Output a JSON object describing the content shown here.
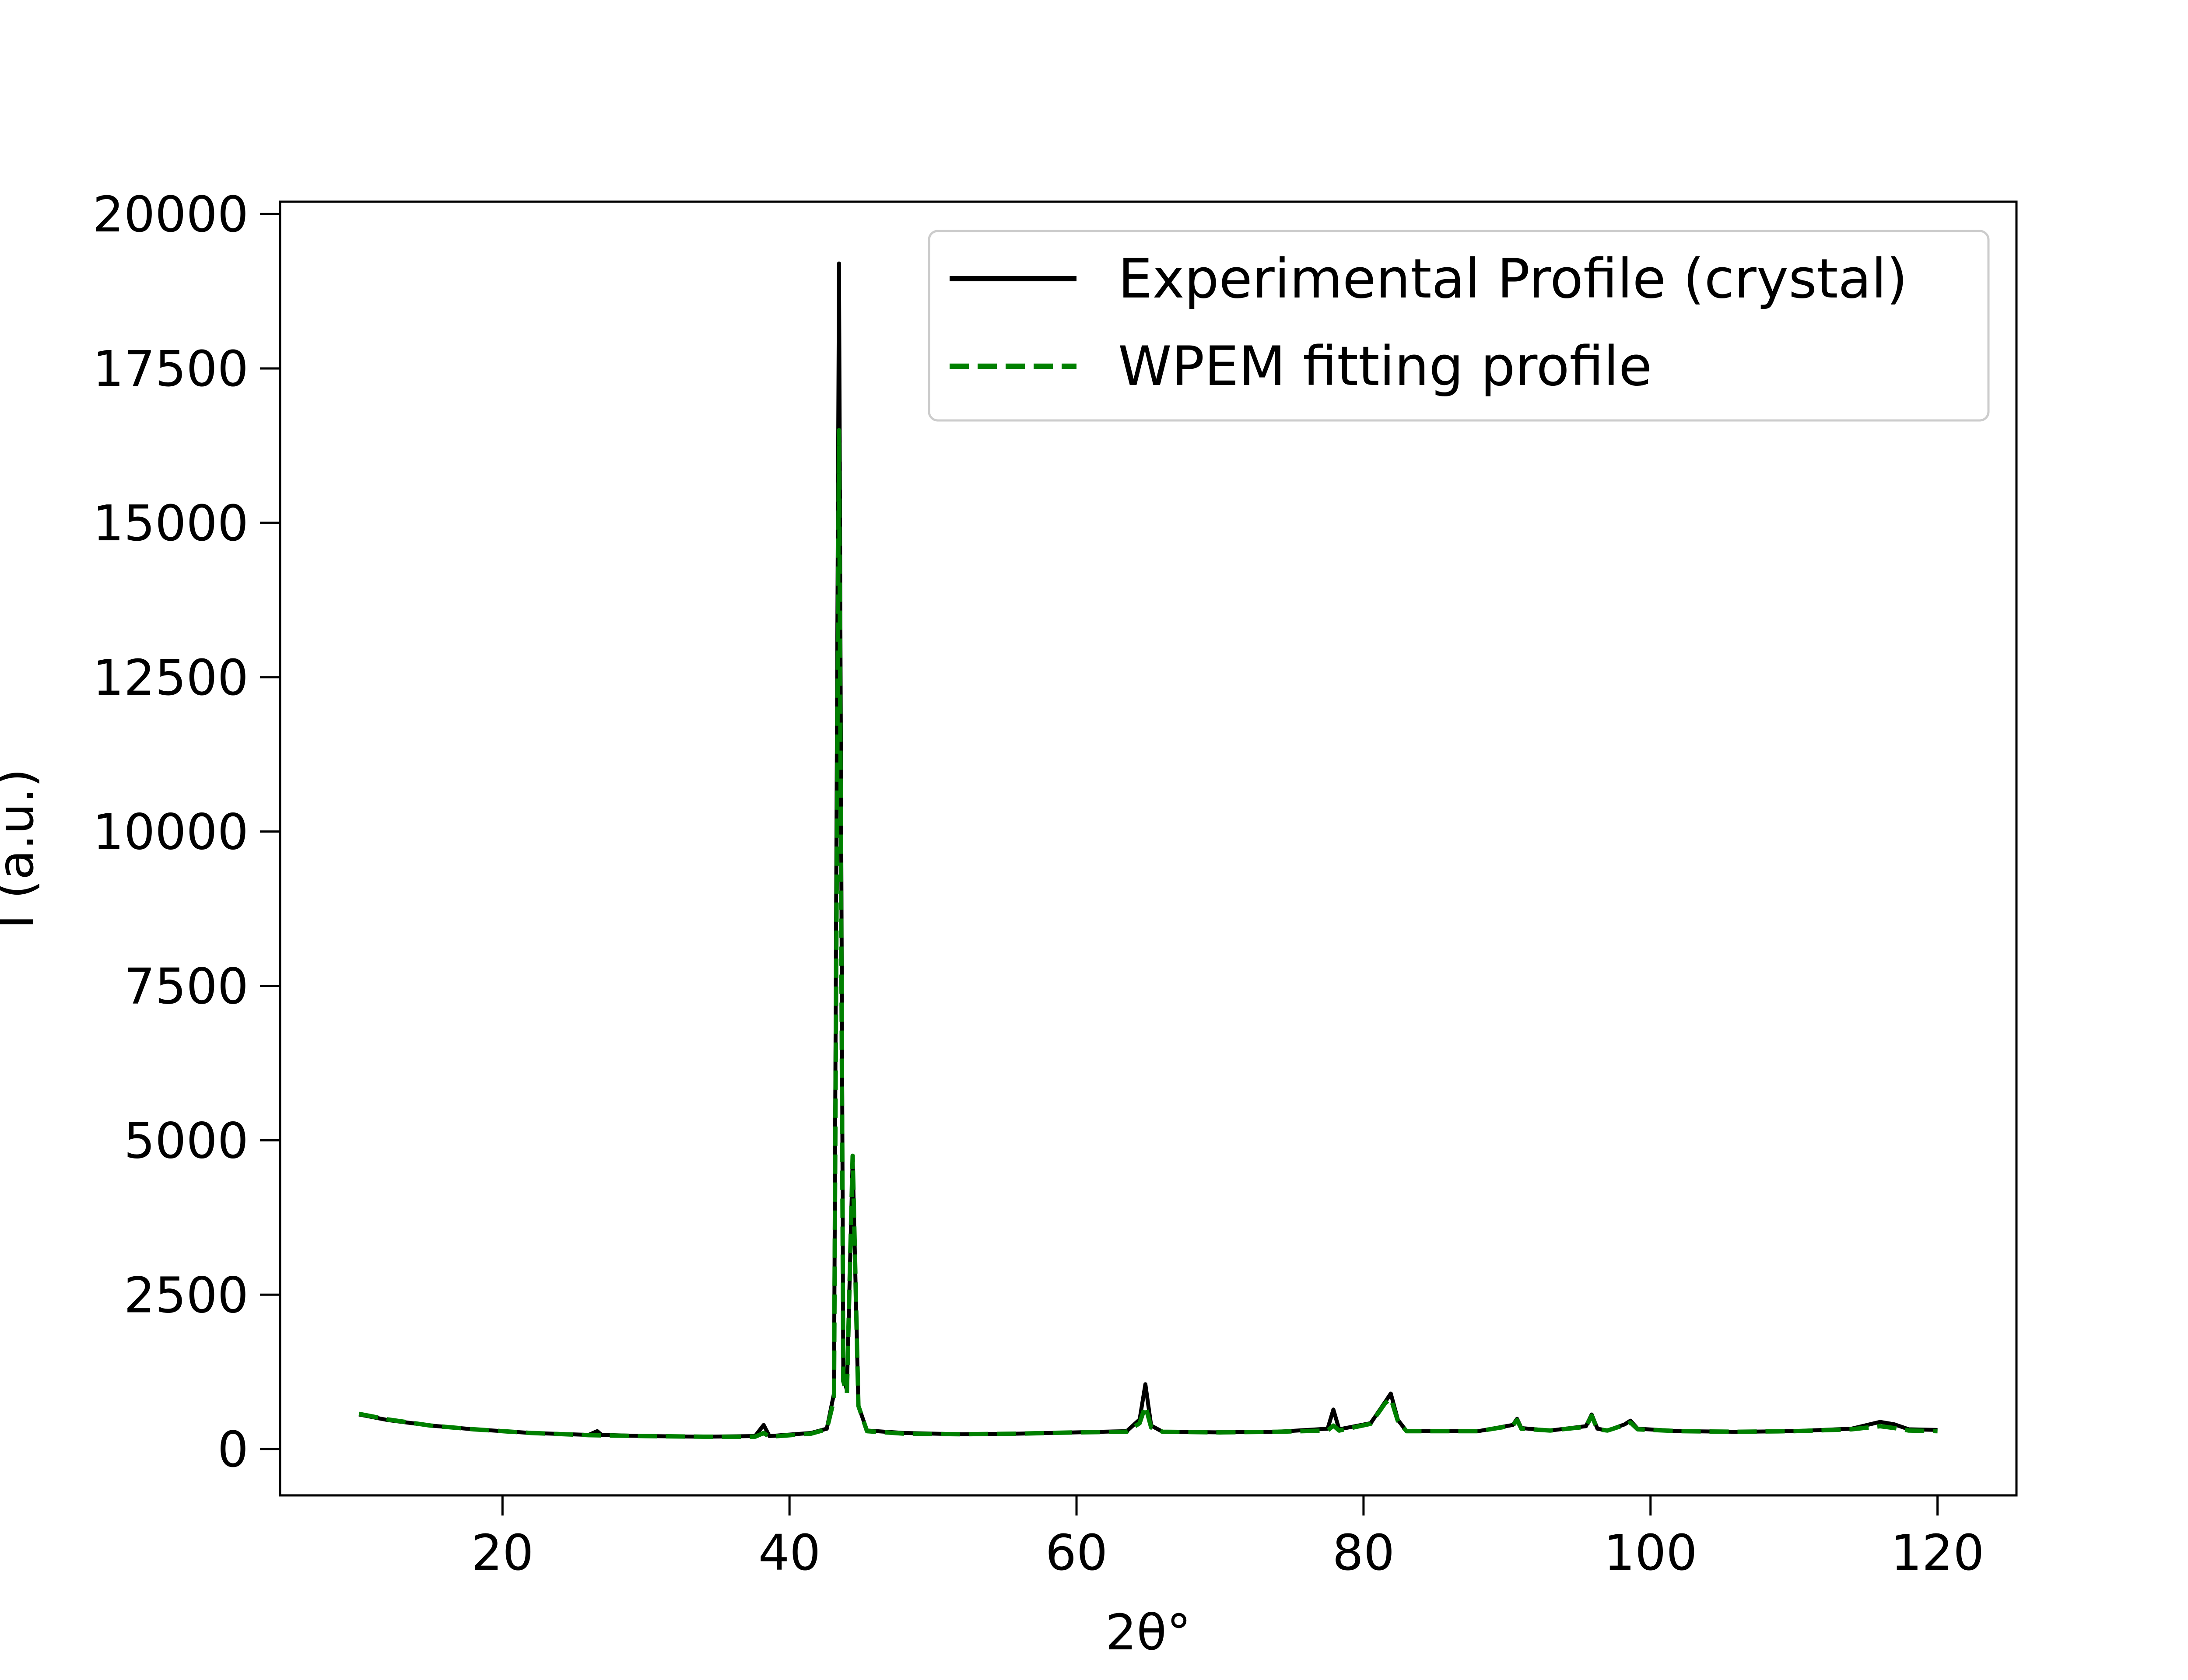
{
  "chart_data": {
    "type": "line",
    "title": "",
    "xlabel": "2θ°",
    "ylabel": "I (a.u.)",
    "xlim": [
      4.5,
      125.5
    ],
    "ylim": [
      -750,
      20200
    ],
    "xticks": [
      20,
      40,
      60,
      80,
      100,
      120
    ],
    "yticks": [
      0,
      2500,
      5000,
      7500,
      10000,
      12500,
      15000,
      17500,
      20000
    ],
    "grid": false,
    "legend_position": "top-right",
    "series": [
      {
        "name": "Experimental Profile (crystal)",
        "color": "#000000",
        "style": "solid",
        "points": [
          [
            10,
            560
          ],
          [
            12,
            470
          ],
          [
            15,
            380
          ],
          [
            18,
            320
          ],
          [
            22,
            260
          ],
          [
            26,
            230
          ],
          [
            26.6,
            290
          ],
          [
            26.9,
            230
          ],
          [
            30,
            210
          ],
          [
            34,
            200
          ],
          [
            37.6,
            210
          ],
          [
            38.2,
            390
          ],
          [
            38.6,
            210
          ],
          [
            41.5,
            260
          ],
          [
            42.6,
            330
          ],
          [
            43.1,
            900
          ],
          [
            43.45,
            19200
          ],
          [
            43.75,
            1200
          ],
          [
            44.0,
            950
          ],
          [
            44.4,
            4700
          ],
          [
            44.8,
            700
          ],
          [
            45.4,
            300
          ],
          [
            48,
            260
          ],
          [
            52,
            240
          ],
          [
            56,
            250
          ],
          [
            60,
            270
          ],
          [
            63.5,
            290
          ],
          [
            64.4,
            480
          ],
          [
            64.8,
            1050
          ],
          [
            65.2,
            380
          ],
          [
            66,
            280
          ],
          [
            70,
            270
          ],
          [
            74,
            280
          ],
          [
            77.5,
            330
          ],
          [
            77.9,
            640
          ],
          [
            78.3,
            320
          ],
          [
            80.5,
            420
          ],
          [
            81.5,
            760
          ],
          [
            81.9,
            900
          ],
          [
            82.4,
            470
          ],
          [
            83,
            290
          ],
          [
            88,
            290
          ],
          [
            90.4,
            390
          ],
          [
            90.7,
            490
          ],
          [
            91.0,
            340
          ],
          [
            93,
            300
          ],
          [
            95.5,
            370
          ],
          [
            95.9,
            560
          ],
          [
            96.3,
            330
          ],
          [
            97,
            300
          ],
          [
            98.2,
            400
          ],
          [
            98.6,
            460
          ],
          [
            99.1,
            330
          ],
          [
            102,
            290
          ],
          [
            106,
            280
          ],
          [
            110,
            290
          ],
          [
            114,
            330
          ],
          [
            116,
            440
          ],
          [
            117,
            400
          ],
          [
            118,
            320
          ],
          [
            120,
            310
          ]
        ]
      },
      {
        "name": "WPEM fitting profile",
        "color": "#008000",
        "style": "dashed",
        "points": [
          [
            10,
            570
          ],
          [
            12,
            480
          ],
          [
            15,
            380
          ],
          [
            18,
            320
          ],
          [
            22,
            260
          ],
          [
            26,
            225
          ],
          [
            30,
            210
          ],
          [
            34,
            200
          ],
          [
            37.6,
            200
          ],
          [
            38.2,
            260
          ],
          [
            38.6,
            200
          ],
          [
            41.5,
            250
          ],
          [
            42.6,
            320
          ],
          [
            43.1,
            800
          ],
          [
            43.45,
            16500
          ],
          [
            43.75,
            1100
          ],
          [
            44.0,
            900
          ],
          [
            44.4,
            4750
          ],
          [
            44.8,
            700
          ],
          [
            45.4,
            290
          ],
          [
            48,
            250
          ],
          [
            52,
            240
          ],
          [
            56,
            250
          ],
          [
            60,
            270
          ],
          [
            63.5,
            280
          ],
          [
            64.4,
            420
          ],
          [
            64.8,
            700
          ],
          [
            65.2,
            350
          ],
          [
            66,
            280
          ],
          [
            70,
            270
          ],
          [
            74,
            280
          ],
          [
            77.5,
            300
          ],
          [
            77.9,
            380
          ],
          [
            78.3,
            300
          ],
          [
            80.5,
            410
          ],
          [
            81.5,
            740
          ],
          [
            81.9,
            820
          ],
          [
            82.4,
            450
          ],
          [
            83,
            290
          ],
          [
            88,
            290
          ],
          [
            90.4,
            380
          ],
          [
            90.7,
            470
          ],
          [
            91.0,
            330
          ],
          [
            93,
            300
          ],
          [
            95.5,
            360
          ],
          [
            95.9,
            540
          ],
          [
            96.3,
            320
          ],
          [
            97,
            300
          ],
          [
            98.2,
            390
          ],
          [
            98.6,
            430
          ],
          [
            99.1,
            320
          ],
          [
            102,
            290
          ],
          [
            106,
            280
          ],
          [
            110,
            290
          ],
          [
            114,
            320
          ],
          [
            116,
            370
          ],
          [
            117,
            340
          ],
          [
            118,
            300
          ],
          [
            120,
            290
          ]
        ]
      }
    ]
  }
}
